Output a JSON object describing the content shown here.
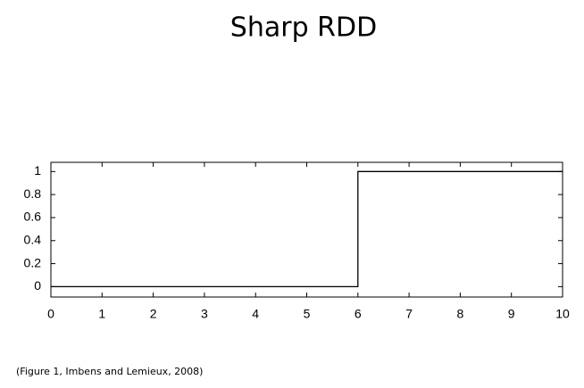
{
  "chart_data": {
    "type": "line",
    "title": "Sharp RDD",
    "caption": "(Figure 1, Imbens and Lemieux, 2008)",
    "x": [
      0,
      6,
      6,
      10
    ],
    "values": [
      0,
      0,
      1,
      1
    ],
    "color": "#000000",
    "xlim": [
      0,
      10
    ],
    "ylim": [
      -0.09,
      1.08
    ],
    "xticks": [
      0,
      1,
      2,
      3,
      4,
      5,
      6,
      7,
      8,
      9,
      10
    ],
    "yticks": [
      0,
      0.2,
      0.4,
      0.6,
      0.8,
      1
    ]
  }
}
